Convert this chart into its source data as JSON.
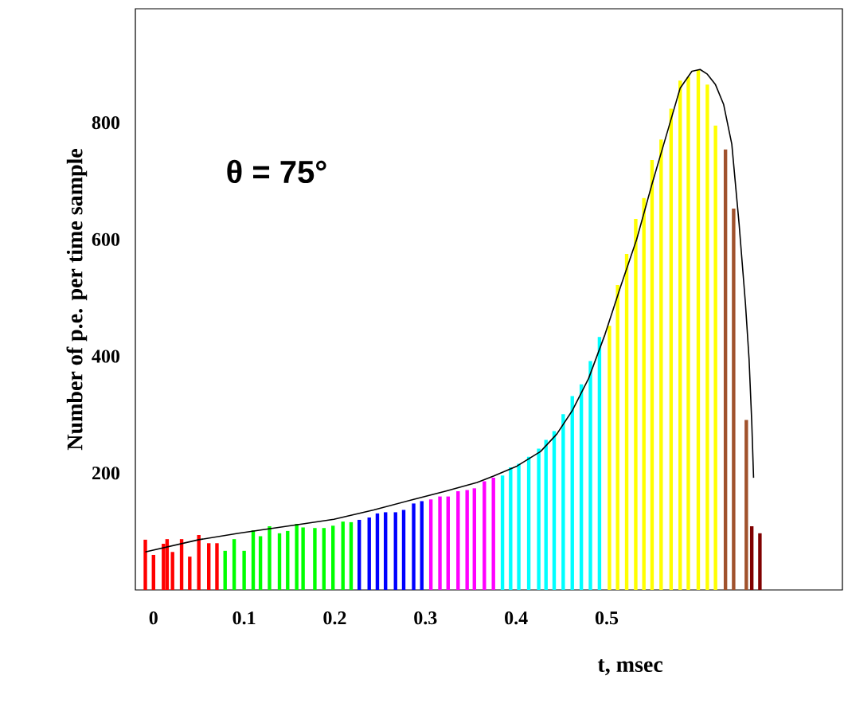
{
  "chart_data": {
    "type": "bar",
    "xlabel": "t, msec",
    "ylabel": "Number of p.e. per time sample",
    "annotations": [
      "θ = 75°"
    ],
    "xlim": [
      -0.02,
      0.76
    ],
    "ylim": [
      0,
      995
    ],
    "xticks": [
      0,
      0.1,
      0.2,
      0.3,
      0.4,
      0.5
    ],
    "yticks": [
      200,
      400,
      600,
      800
    ],
    "grid": false,
    "series": [
      {
        "x": [
          -0.009,
          0.0,
          0.011,
          0.015,
          0.021,
          0.031,
          0.04,
          0.05,
          0.061,
          0.07,
          0.079,
          0.089,
          0.1,
          0.11,
          0.118,
          0.128,
          0.139,
          0.148,
          0.158,
          0.165,
          0.178,
          0.188,
          0.198,
          0.209,
          0.218,
          0.227,
          0.238,
          0.247,
          0.256,
          0.267,
          0.276,
          0.287,
          0.296,
          0.306,
          0.316,
          0.325,
          0.336,
          0.346,
          0.354,
          0.365,
          0.375,
          0.385,
          0.394,
          0.403,
          0.414,
          0.425,
          0.433,
          0.442,
          0.452,
          0.462,
          0.472,
          0.482,
          0.492,
          0.503,
          0.512,
          0.522,
          0.532,
          0.541,
          0.55,
          0.56,
          0.571,
          0.581,
          0.59,
          0.601,
          0.611,
          0.62,
          0.631,
          0.64,
          0.654,
          0.66,
          0.669
        ],
        "values": [
          86,
          60,
          79,
          87,
          65,
          87,
          57,
          94,
          80,
          80,
          67,
          87,
          67,
          102,
          92,
          109,
          97,
          101,
          113,
          107,
          106,
          106,
          110,
          117,
          116,
          120,
          124,
          131,
          133,
          133,
          137,
          148,
          152,
          155,
          160,
          160,
          169,
          171,
          174,
          186,
          192,
          196,
          210,
          216,
          228,
          242,
          257,
          272,
          301,
          332,
          352,
          392,
          433,
          452,
          522,
          575,
          635,
          671,
          736,
          771,
          824,
          872,
          878,
          890,
          865,
          795,
          754,
          653,
          291,
          109,
          97
        ],
        "colors": [
          "#ff0000",
          "#ff0000",
          "#ff0000",
          "#ff0000",
          "#ff0000",
          "#ff0000",
          "#ff0000",
          "#ff0000",
          "#ff0000",
          "#ff0000",
          "#00ff00",
          "#00ff00",
          "#00ff00",
          "#00ff00",
          "#00ff00",
          "#00ff00",
          "#00ff00",
          "#00ff00",
          "#00ff00",
          "#00ff00",
          "#00ff00",
          "#00ff00",
          "#00ff00",
          "#00ff00",
          "#00ff00",
          "#0000ff",
          "#0000ff",
          "#0000ff",
          "#0000ff",
          "#0000ff",
          "#0000ff",
          "#0000ff",
          "#0000ff",
          "#ff00ff",
          "#ff00ff",
          "#ff00ff",
          "#ff00ff",
          "#ff00ff",
          "#ff00ff",
          "#ff00ff",
          "#ff00ff",
          "#00ffff",
          "#00ffff",
          "#00ffff",
          "#00ffff",
          "#00ffff",
          "#00ffff",
          "#00ffff",
          "#00ffff",
          "#00ffff",
          "#00ffff",
          "#00ffff",
          "#00ffff",
          "#ffff00",
          "#ffff00",
          "#ffff00",
          "#ffff00",
          "#ffff00",
          "#ffff00",
          "#ffff00",
          "#ffff00",
          "#ffff00",
          "#ffff00",
          "#ffff00",
          "#ffff00",
          "#ffff00",
          "#a0522d",
          "#a0522d",
          "#a0522d",
          "#800000",
          "#800000"
        ]
      },
      {
        "type": "line",
        "color": "#000000",
        "line_style": "solid",
        "marker": "none",
        "x": [
          -0.009,
          0.05,
          0.094,
          0.165,
          0.199,
          0.243,
          0.287,
          0.322,
          0.357,
          0.375,
          0.401,
          0.427,
          0.445,
          0.462,
          0.48,
          0.498,
          0.515,
          0.533,
          0.55,
          0.568,
          0.581,
          0.594,
          0.603,
          0.611,
          0.62,
          0.629,
          0.638,
          0.646,
          0.653,
          0.657,
          0.66,
          0.662
        ],
        "values": [
          65,
          86,
          97,
          113,
          121,
          137,
          155,
          169,
          184,
          195,
          212,
          237,
          267,
          307,
          362,
          437,
          518,
          600,
          695,
          790,
          859,
          888,
          891,
          883,
          865,
          831,
          763,
          627,
          491,
          396,
          287,
          192
        ]
      }
    ]
  }
}
